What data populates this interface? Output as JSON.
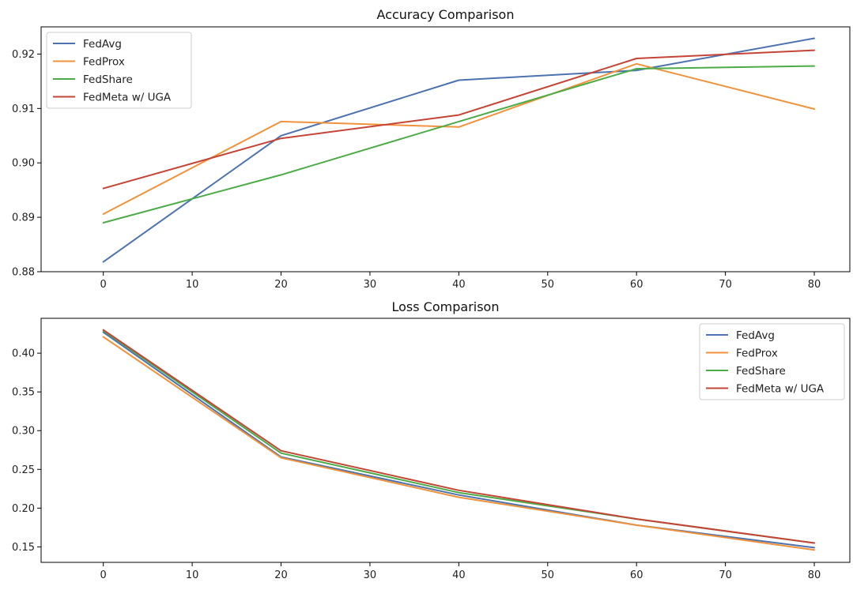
{
  "chart_data": [
    {
      "type": "line",
      "title": "Accuracy Comparison",
      "xlabel": "",
      "ylabel": "",
      "x": [
        0,
        20,
        40,
        60,
        80
      ],
      "xlim": [
        -7,
        84
      ],
      "ylim": [
        0.88,
        0.925
      ],
      "xticks": [
        0,
        10,
        20,
        30,
        40,
        50,
        60,
        70,
        80
      ],
      "yticks": [
        0.88,
        0.89,
        0.9,
        0.91,
        0.92
      ],
      "ytick_labels": [
        "0.88",
        "0.89",
        "0.90",
        "0.91",
        "0.92"
      ],
      "grid": false,
      "legend_position": "top-left",
      "series": [
        {
          "name": "FedAvg",
          "color": "#4c72b0",
          "values": [
            0.8818,
            0.905,
            0.9152,
            0.917,
            0.9229
          ]
        },
        {
          "name": "FedProx",
          "color": "#f0923b",
          "values": [
            0.8906,
            0.9076,
            0.9066,
            0.9182,
            0.9099
          ]
        },
        {
          "name": "FedShare",
          "color": "#4cab47",
          "values": [
            0.889,
            0.8978,
            0.9076,
            0.9173,
            0.9178
          ]
        },
        {
          "name": "FedMeta w/ UGA",
          "color": "#c44536",
          "values": [
            0.8953,
            0.9045,
            0.9088,
            0.9192,
            0.9207
          ]
        }
      ]
    },
    {
      "type": "line",
      "title": "Loss Comparison",
      "xlabel": "",
      "ylabel": "",
      "x": [
        0,
        20,
        40,
        60,
        80
      ],
      "xlim": [
        -7,
        84
      ],
      "ylim": [
        0.13,
        0.445
      ],
      "xticks": [
        0,
        10,
        20,
        30,
        40,
        50,
        60,
        70,
        80
      ],
      "yticks": [
        0.15,
        0.2,
        0.25,
        0.3,
        0.35,
        0.4
      ],
      "ytick_labels": [
        "0.15",
        "0.20",
        "0.25",
        "0.30",
        "0.35",
        "0.40"
      ],
      "grid": false,
      "legend_position": "top-right",
      "series": [
        {
          "name": "FedAvg",
          "color": "#4c72b0",
          "values": [
            0.427,
            0.266,
            0.217,
            0.178,
            0.149
          ]
        },
        {
          "name": "FedProx",
          "color": "#f0923b",
          "values": [
            0.421,
            0.265,
            0.214,
            0.178,
            0.146
          ]
        },
        {
          "name": "FedShare",
          "color": "#4cab47",
          "values": [
            0.429,
            0.271,
            0.22,
            0.186,
            0.155
          ]
        },
        {
          "name": "FedMeta w/ UGA",
          "color": "#c44536",
          "values": [
            0.43,
            0.274,
            0.223,
            0.186,
            0.155
          ]
        }
      ]
    }
  ]
}
